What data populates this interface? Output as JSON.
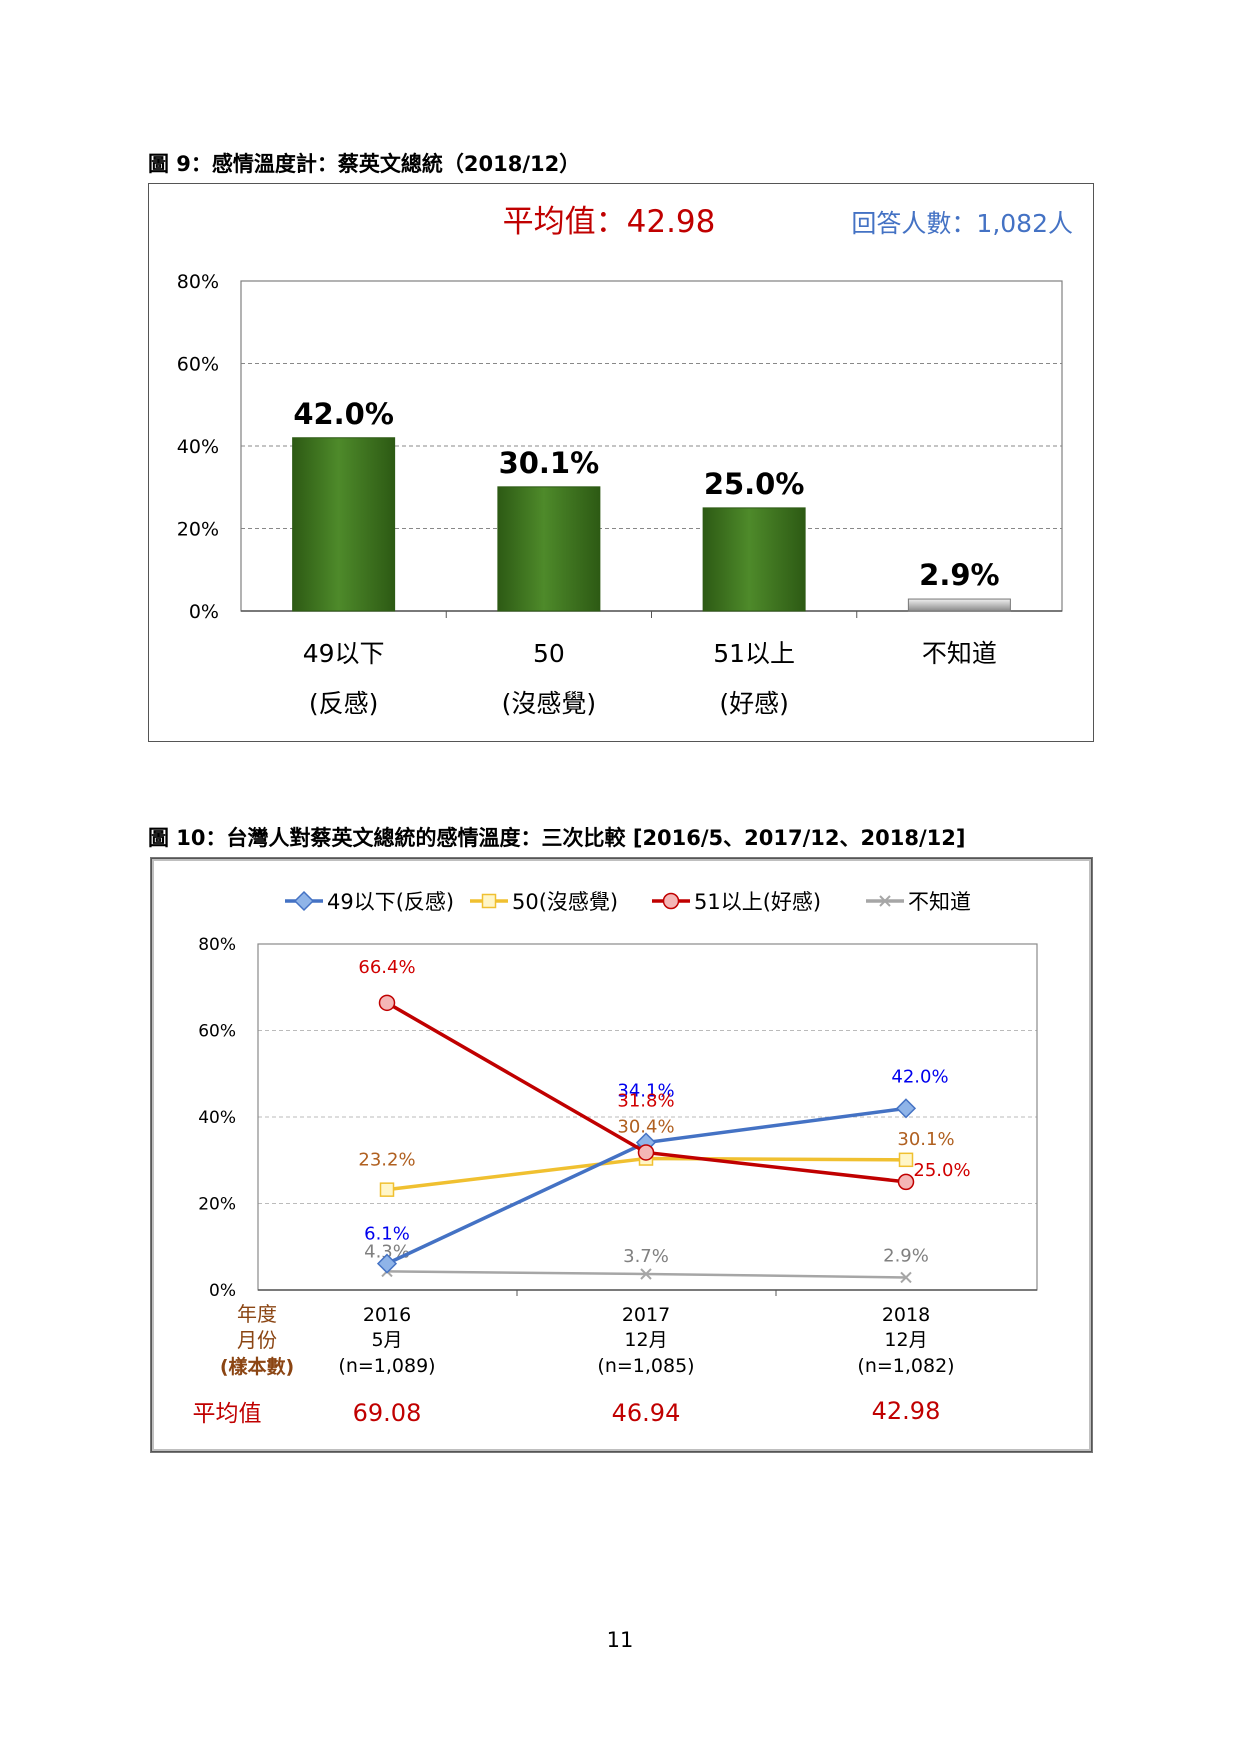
{
  "page_number": "11",
  "figure9": {
    "title": "圖 9：感情溫度計：蔡英文總統（2018/12）",
    "mean_text": "平均值：42.98",
    "respondents_text": "回答人數：1,082人",
    "colors": {
      "bar": "#4e8a2a",
      "bar_dk": "#2d5a14",
      "bar_gray": "#c8c8c8",
      "mean": "#c00000",
      "respondents": "#4472c4"
    },
    "chart_data": {
      "type": "bar",
      "categories": [
        "49以下",
        "50",
        "51以上",
        "不知道"
      ],
      "sublabels": [
        "(反感)",
        "(沒感覺)",
        "(好感)",
        ""
      ],
      "values": [
        42.0,
        30.1,
        25.0,
        2.9
      ],
      "value_labels": [
        "42.0%",
        "30.1%",
        "25.0%",
        "2.9%"
      ],
      "ylim": [
        0,
        80
      ],
      "yticks": [
        "0%",
        "20%",
        "40%",
        "60%",
        "80%"
      ],
      "grid": true
    }
  },
  "figure10": {
    "title": "圖 10：台灣人對蔡英文總統的感情溫度：三次比較 [2016/5、2017/12、2018/12]",
    "row_labels": [
      "年度",
      "月份",
      "(樣本數)"
    ],
    "mean_label": "平均值",
    "columns": [
      {
        "year": "2016",
        "month": "5月",
        "n": "(n=1,089)",
        "mean": "69.08"
      },
      {
        "year": "2017",
        "month": "12月",
        "n": "(n=1,085)",
        "mean": "46.94"
      },
      {
        "year": "2018",
        "month": "12月",
        "n": "(n=1,082)",
        "mean": "42.98"
      }
    ],
    "chart_data": {
      "type": "line",
      "x": [
        "2016",
        "2017",
        "2018"
      ],
      "ylim": [
        0,
        80
      ],
      "yticks": [
        "0%",
        "20%",
        "40%",
        "60%",
        "80%"
      ],
      "grid": true,
      "legend_position": "top",
      "series": [
        {
          "name": "49以下(反感)",
          "values": [
            6.1,
            34.1,
            42.0
          ],
          "labels": [
            "6.1%",
            "34.1%",
            "42.0%"
          ],
          "color": "#4472c4",
          "label_color": "#0000ee",
          "marker": "diamond"
        },
        {
          "name": "50(沒感覺)",
          "values": [
            23.2,
            30.4,
            30.1
          ],
          "labels": [
            "23.2%",
            "30.4%",
            "30.1%"
          ],
          "color": "#f0c030",
          "label_color": "#b06020",
          "marker": "square"
        },
        {
          "name": "51以上(好感)",
          "values": [
            66.4,
            31.8,
            25.0
          ],
          "labels": [
            "66.4%",
            "31.8%",
            "25.0%"
          ],
          "color": "#c00000",
          "label_color": "#d00000",
          "marker": "circle"
        },
        {
          "name": "不知道",
          "values": [
            4.3,
            3.7,
            2.9
          ],
          "labels": [
            "4.3%",
            "3.7%",
            "2.9%"
          ],
          "color": "#a6a6a6",
          "label_color": "#808080",
          "marker": "x"
        }
      ]
    }
  }
}
